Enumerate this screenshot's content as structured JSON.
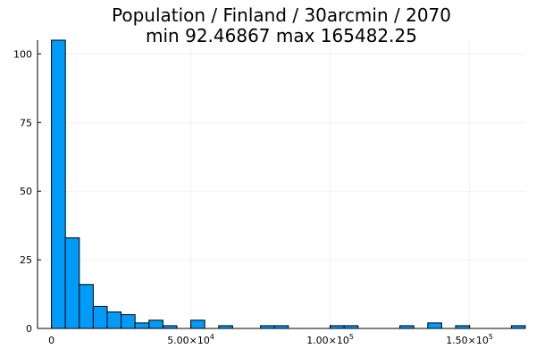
{
  "chart_data": {
    "type": "bar",
    "title_line1": "Population / Finland / 30arcmin / 2070",
    "title_line2": "min 92.46867  max 165482.25",
    "bin_width": 5000,
    "bins_start": [
      0,
      5000,
      10000,
      15000,
      20000,
      25000,
      30000,
      35000,
      40000,
      45000,
      50000,
      55000,
      60000,
      65000,
      70000,
      75000,
      80000,
      85000,
      90000,
      95000,
      100000,
      105000,
      110000,
      115000,
      120000,
      125000,
      130000,
      135000,
      140000,
      145000,
      150000,
      155000,
      160000,
      165000
    ],
    "values": [
      105,
      33,
      16,
      8,
      6,
      5,
      2,
      3,
      1,
      0,
      3,
      0,
      1,
      0,
      0,
      1,
      1,
      0,
      0,
      0,
      1,
      1,
      0,
      0,
      0,
      1,
      0,
      2,
      0,
      1,
      0,
      0,
      0,
      1
    ],
    "xlim": [
      -5000,
      170000
    ],
    "ylim": [
      0,
      105
    ],
    "x_ticks": [
      {
        "value": 0,
        "mantissa": "0",
        "exp": ""
      },
      {
        "value": 50000,
        "mantissa": "5.00×10",
        "exp": "4"
      },
      {
        "value": 100000,
        "mantissa": "1.00×10",
        "exp": "5"
      },
      {
        "value": 150000,
        "mantissa": "1.50×10",
        "exp": "5"
      }
    ],
    "y_ticks": [
      {
        "value": 0,
        "label": "0"
      },
      {
        "value": 25,
        "label": "25"
      },
      {
        "value": 50,
        "label": "50"
      },
      {
        "value": 75,
        "label": "75"
      },
      {
        "value": 100,
        "label": "100"
      }
    ],
    "grid": true,
    "legend": "none",
    "bar_color": "#009af9"
  }
}
